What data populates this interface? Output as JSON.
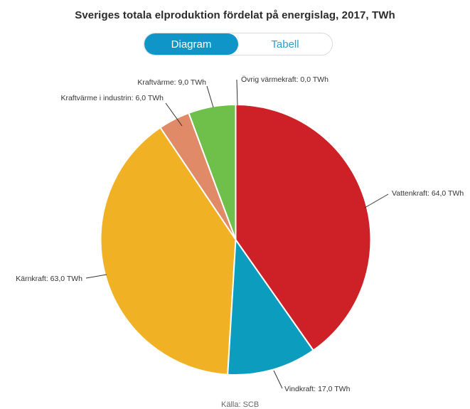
{
  "header": {
    "title": "Sveriges totala elproduktion fördelat på energislag, 2017, TWh"
  },
  "tabs": [
    {
      "label": "Diagram",
      "active": true
    },
    {
      "label": "Tabell",
      "active": false
    }
  ],
  "source": "Källa: SCB",
  "colors": {
    "tab_active_bg": "#1095c8",
    "tab_active_text": "#ffffff",
    "tab_inactive_text": "#2d9fcb",
    "tab_border": "#d9d9d9",
    "slice_stroke": "#ffffff",
    "label_text": "#333333",
    "source_text": "#666666"
  },
  "chart_data": {
    "type": "pie",
    "title": "Sveriges totala elproduktion fördelat på energislag, 2017, TWh",
    "unit": "TWh",
    "total": 159.0,
    "start_angle_deg": 0,
    "direction": "clockwise",
    "labels": "direct labels with leader lines, comma decimal format",
    "slices": [
      {
        "name": "Vattenkraft",
        "value": 64.0,
        "label": "Vattenkraft: 64,0 TWh",
        "color": "#cd2027"
      },
      {
        "name": "Vindkraft",
        "value": 17.0,
        "label": "Vindkraft: 17,0 TWh",
        "color": "#0c9cbd"
      },
      {
        "name": "Kärnkraft",
        "value": 63.0,
        "label": "Kärnkraft: 63,0 TWh",
        "color": "#f0b125"
      },
      {
        "name": "Kraftvärme i industrin",
        "value": 6.0,
        "label": "Kraftvärme i industrin: 6,0 TWh",
        "color": "#e18a67"
      },
      {
        "name": "Kraftvärme",
        "value": 9.0,
        "label": "Kraftvärme: 9,0 TWh",
        "color": "#6ec04a"
      },
      {
        "name": "Övrig värmekraft",
        "value": 0.0,
        "label": "Övrig värmekraft: 0,0 TWh",
        "color": null
      }
    ]
  }
}
